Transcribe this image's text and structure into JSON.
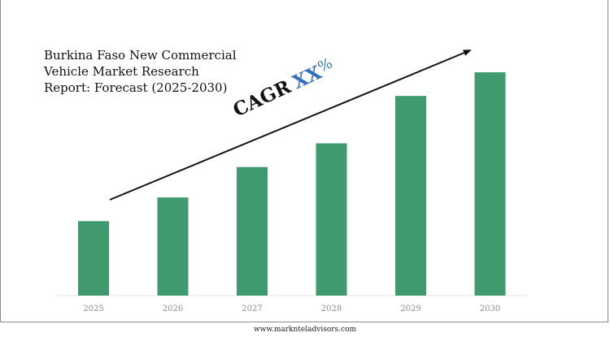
{
  "title": "Burkina Faso New Commercial\nVehicle Market Research\nReport: Forecast (2025-2030)",
  "cagr": {
    "label": "CAGR",
    "value": "XX",
    "percent": "%"
  },
  "footer": "www.marknteladvisors.com",
  "colors": {
    "bar": "#3f9a6e",
    "cagr_value": "#2f6fc0",
    "arrow": "#111111"
  },
  "chart_data": {
    "type": "bar",
    "categories": [
      "2025",
      "2026",
      "2027",
      "2028",
      "2029",
      "2030"
    ],
    "values": [
      22,
      29,
      38,
      45,
      59,
      66
    ],
    "ylim": [
      0,
      72
    ],
    "grid": false,
    "legend": "none",
    "xlabel": "",
    "ylabel": ""
  }
}
